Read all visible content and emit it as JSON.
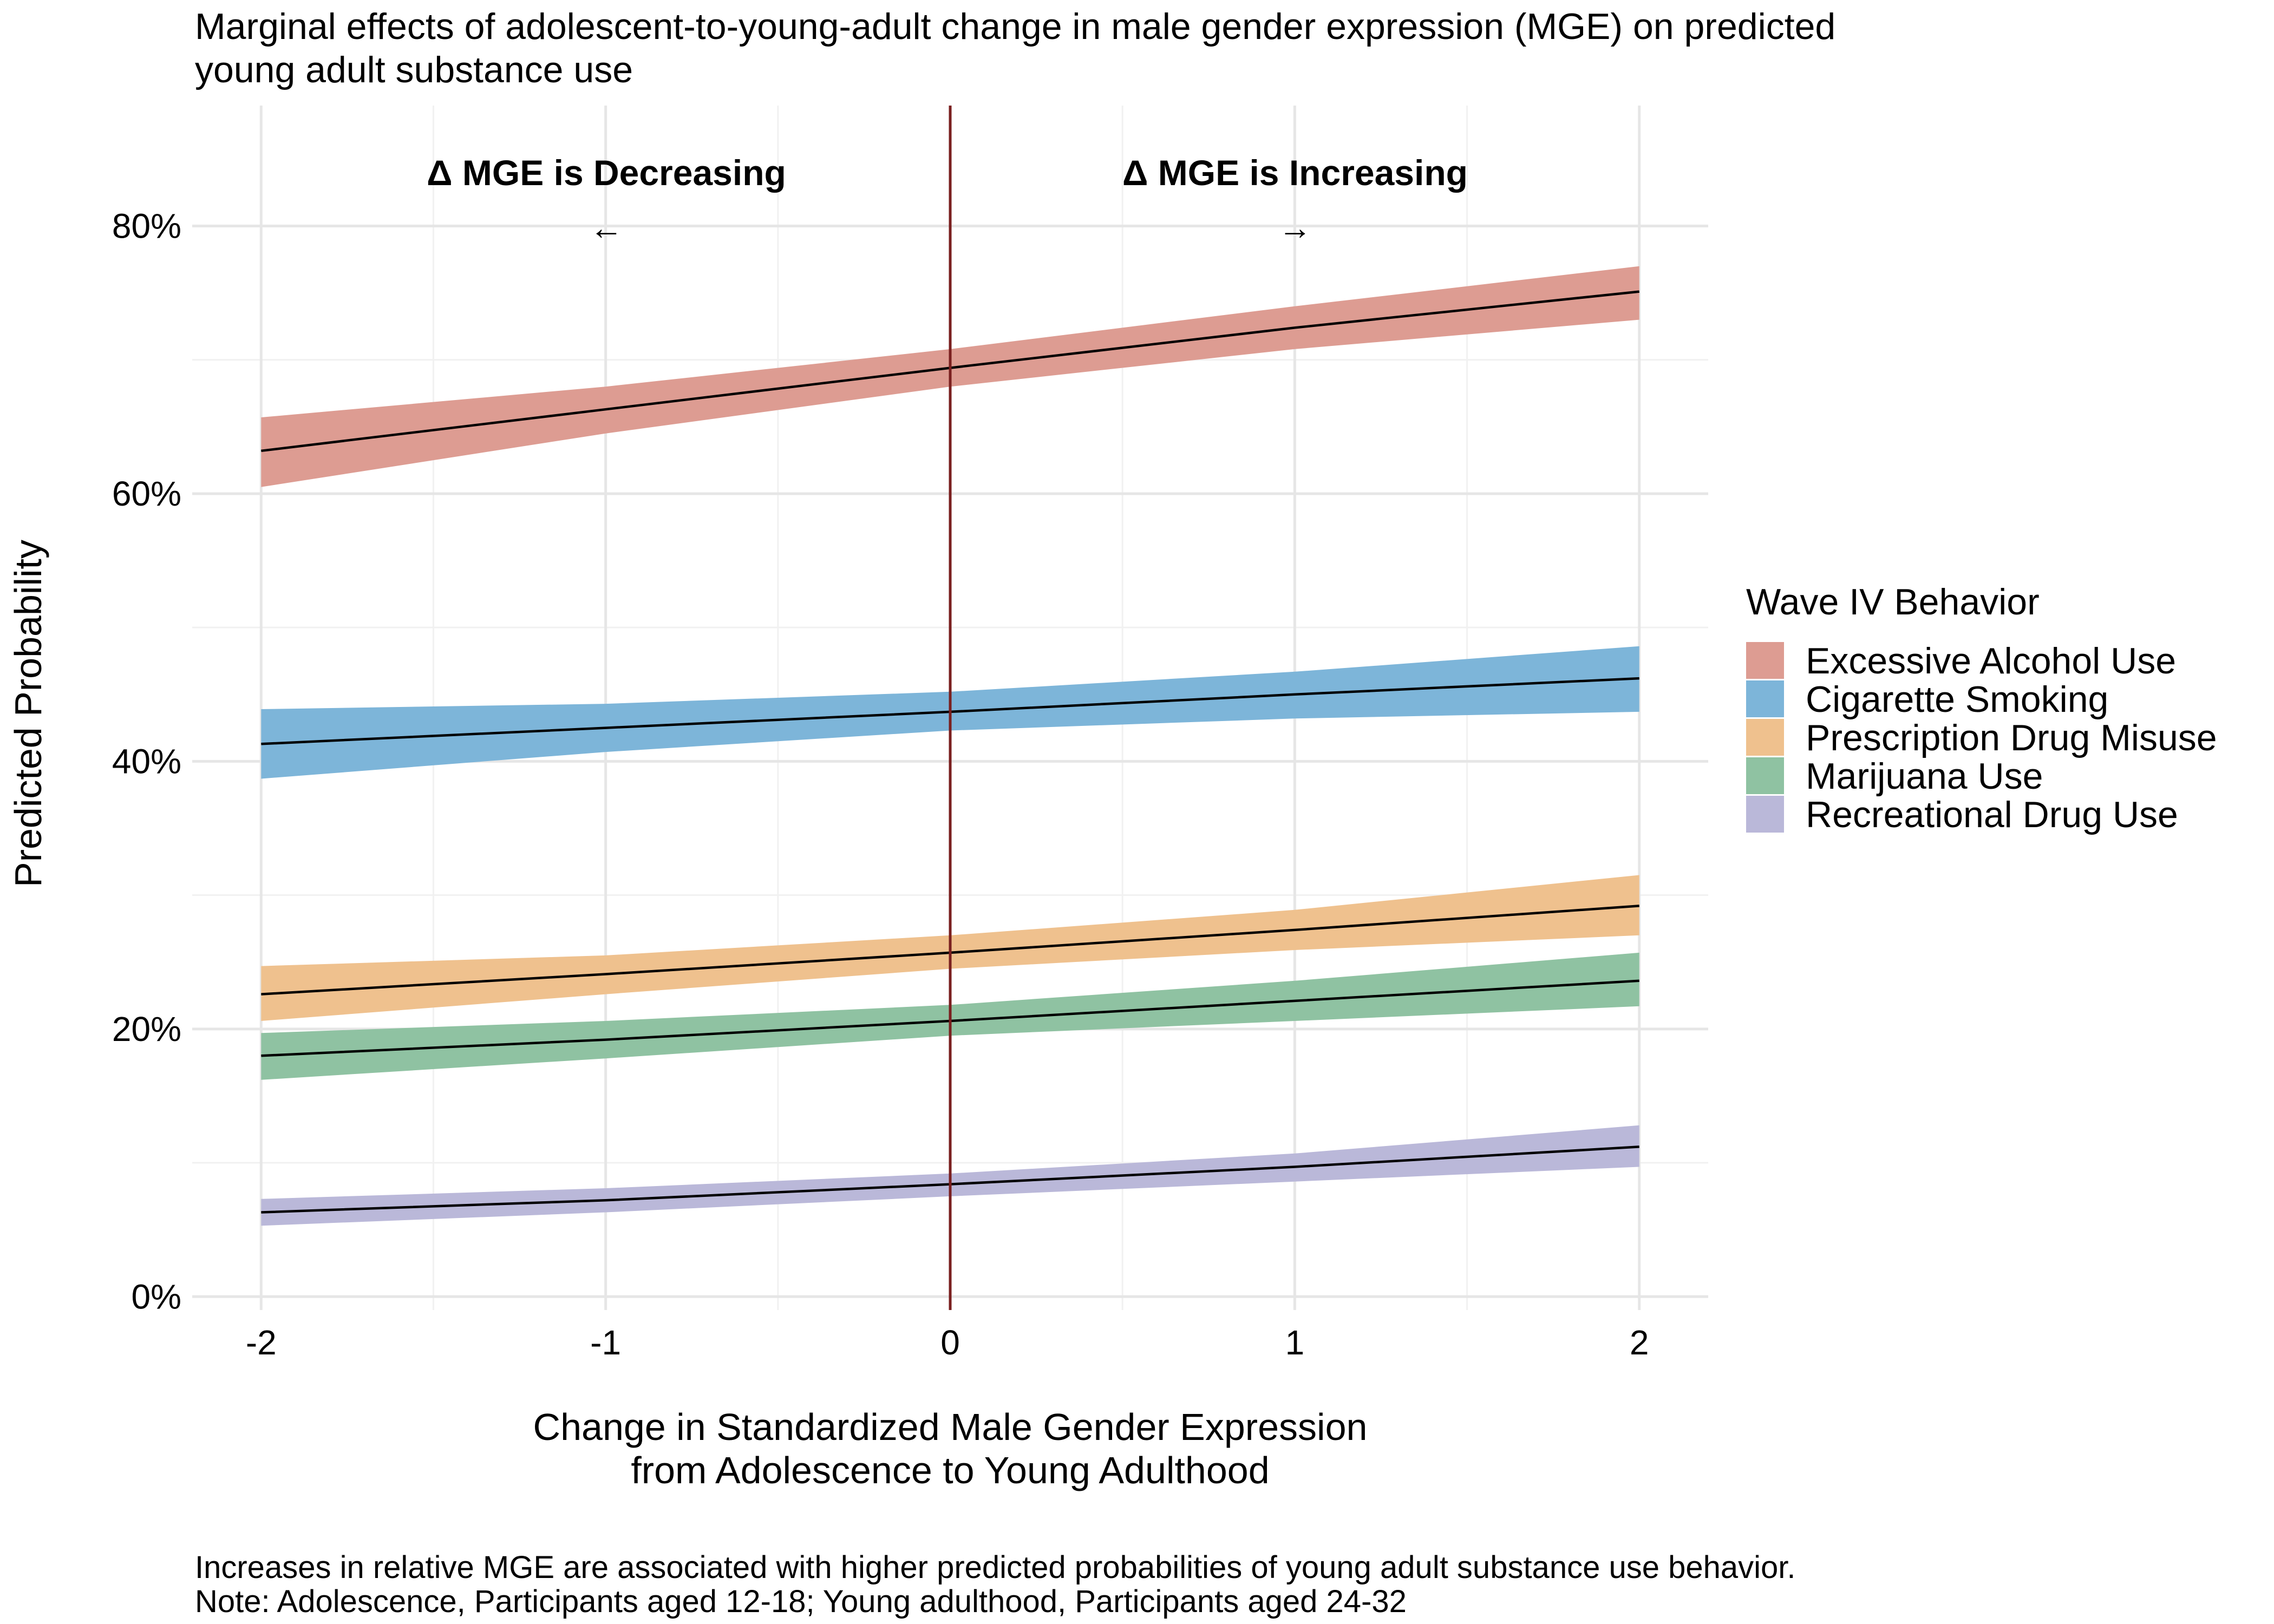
{
  "chart_data": {
    "type": "area",
    "title": "Marginal effects of adolescent-to-young-adult change in male gender expression (MGE) on predicted young adult substance use",
    "title_lines": [
      "Marginal effects of adolescent-to-young-adult change in male gender expression (MGE) on predicted",
      "young adult substance use"
    ],
    "xlabel_lines": [
      "Change in Standardized Male Gender Expression",
      "from Adolescence to Young Adulthood"
    ],
    "ylabel": "Predicted Probability",
    "xlim": [
      -2.2,
      2.2
    ],
    "ylim": [
      -0.01,
      0.89
    ],
    "x_ticks": [
      -2,
      -1,
      0,
      1,
      2
    ],
    "x_tick_labels": [
      "-2",
      "-1",
      "0",
      "1",
      "2"
    ],
    "y_ticks": [
      0,
      0.2,
      0.4,
      0.6,
      0.8
    ],
    "y_tick_labels": [
      "0%",
      "20%",
      "40%",
      "60%",
      "80%"
    ],
    "grid": true,
    "reference_line": {
      "x": 0,
      "color": "#7a1f1f"
    },
    "annotations": {
      "left_label": "Δ MGE is Decreasing",
      "left_arrow": "←",
      "right_label": "Δ MGE is Increasing",
      "right_arrow": "→"
    },
    "legend": {
      "title": "Wave IV Behavior",
      "position": "right"
    },
    "x": [
      -2,
      -1,
      0,
      1,
      2
    ],
    "series": [
      {
        "name": "Excessive Alcohol Use",
        "color": "#dd9c92",
        "fit": [
          0.632,
          0.663,
          0.694,
          0.724,
          0.751
        ],
        "lower": [
          0.605,
          0.645,
          0.68,
          0.708,
          0.73
        ],
        "upper": [
          0.657,
          0.68,
          0.708,
          0.74,
          0.77
        ]
      },
      {
        "name": "Cigarette Smoking",
        "color": "#7db5d9",
        "fit": [
          0.413,
          0.425,
          0.437,
          0.45,
          0.462
        ],
        "lower": [
          0.387,
          0.407,
          0.423,
          0.432,
          0.437
        ],
        "upper": [
          0.439,
          0.443,
          0.452,
          0.467,
          0.486
        ]
      },
      {
        "name": "Prescription Drug Misuse",
        "color": "#efc18e",
        "fit": [
          0.226,
          0.241,
          0.257,
          0.274,
          0.292
        ],
        "lower": [
          0.206,
          0.226,
          0.245,
          0.259,
          0.27
        ],
        "upper": [
          0.247,
          0.255,
          0.27,
          0.289,
          0.315
        ]
      },
      {
        "name": "Marijuana Use",
        "color": "#8fc2a2",
        "fit": [
          0.18,
          0.192,
          0.206,
          0.221,
          0.236
        ],
        "lower": [
          0.162,
          0.178,
          0.195,
          0.206,
          0.217
        ],
        "upper": [
          0.197,
          0.206,
          0.218,
          0.236,
          0.257
        ]
      },
      {
        "name": "Recreational Drug Use",
        "color": "#bab8d9",
        "fit": [
          0.063,
          0.072,
          0.084,
          0.097,
          0.112
        ],
        "lower": [
          0.053,
          0.063,
          0.075,
          0.086,
          0.097
        ],
        "upper": [
          0.073,
          0.081,
          0.092,
          0.107,
          0.128
        ]
      }
    ],
    "caption_lines": [
      "Increases in relative MGE are associated with higher predicted probabilities of young adult substance use behavior.",
      "Note: Adolescence, Participants aged 12-18; Young adulthood, Participants aged 24-32"
    ]
  }
}
